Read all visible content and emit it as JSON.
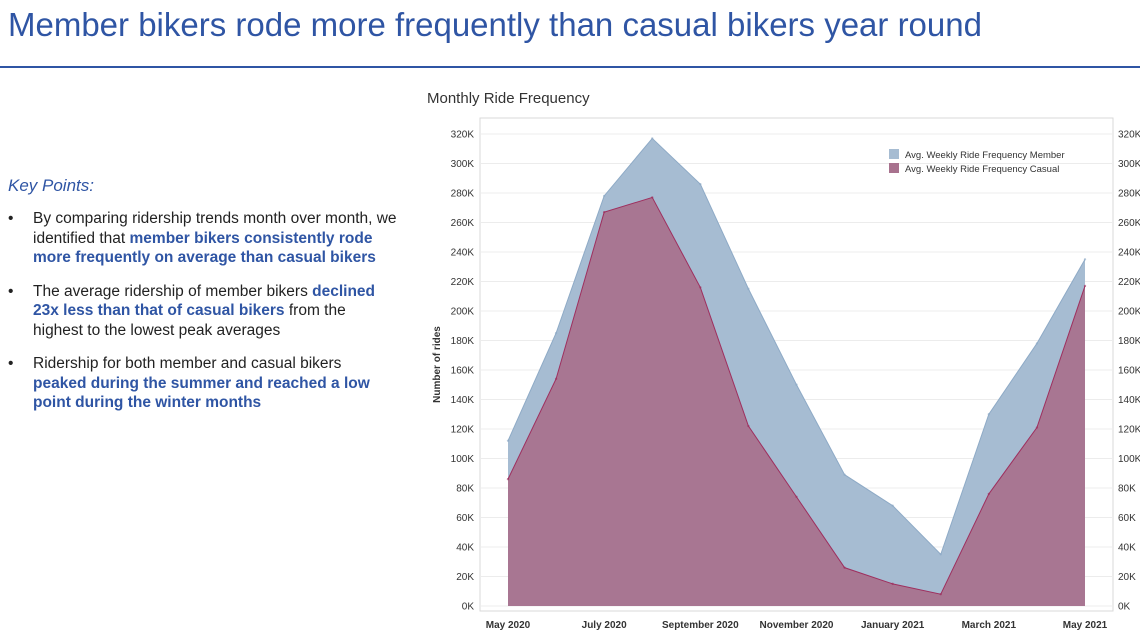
{
  "slide": {
    "title": "Member bikers rode more frequently than casual bikers year round"
  },
  "key_points": {
    "heading": "Key Points:",
    "bullet_symbol": "•",
    "items": [
      {
        "pre": "By comparing ridership trends month over month, we identified that ",
        "bold": "member bikers consistently rode more frequently on average than casual bikers",
        "post": ""
      },
      {
        "pre": "The average ridership of member bikers ",
        "bold": "declined 23x less than that of casual bikers",
        "post": " from the highest to the lowest peak averages"
      },
      {
        "pre": "Ridership for both member and casual bikers ",
        "bold": "peaked during the summer and reached a low point during the winter months",
        "post": ""
      }
    ]
  },
  "chart_data": {
    "type": "area",
    "title": "Monthly Ride Frequency",
    "ylabel": "Number of rides",
    "ylim": [
      0,
      330000
    ],
    "y_ticks": [
      0,
      20000,
      40000,
      60000,
      80000,
      100000,
      120000,
      140000,
      160000,
      180000,
      200000,
      220000,
      240000,
      260000,
      280000,
      300000,
      320000
    ],
    "y_tick_labels": [
      "0K",
      "20K",
      "40K",
      "60K",
      "80K",
      "100K",
      "120K",
      "140K",
      "160K",
      "180K",
      "200K",
      "220K",
      "240K",
      "260K",
      "280K",
      "300K",
      "320K"
    ],
    "x": [
      "May 2020",
      "Jun 2020",
      "Jul 2020",
      "Aug 2020",
      "Sep 2020",
      "Oct 2020",
      "Nov 2020",
      "Dec 2020",
      "Jan 2021",
      "Feb 2021",
      "Mar 2021",
      "Apr 2021",
      "May 2021"
    ],
    "x_tick_labels": [
      "May 2020",
      "July 2020",
      "September 2020",
      "November 2020",
      "January 2021",
      "March 2021",
      "May 2021"
    ],
    "series": [
      {
        "name": "Avg. Weekly Ride Frequency Member",
        "color": "#a6bcd2",
        "edge_color": "#8eaac6",
        "values": [
          112000,
          185000,
          278000,
          317000,
          286000,
          215000,
          150000,
          89000,
          68000,
          35000,
          130000,
          178000,
          235000
        ]
      },
      {
        "name": "Avg. Weekly Ride Frequency Casual",
        "color": "#a8728e",
        "edge_color": "#9e2f5e",
        "values": [
          86000,
          154000,
          267000,
          277000,
          216000,
          122000,
          74000,
          26000,
          15000,
          8000,
          76000,
          121000,
          217000
        ]
      }
    ],
    "legend_position": "top-right",
    "grid": true
  }
}
